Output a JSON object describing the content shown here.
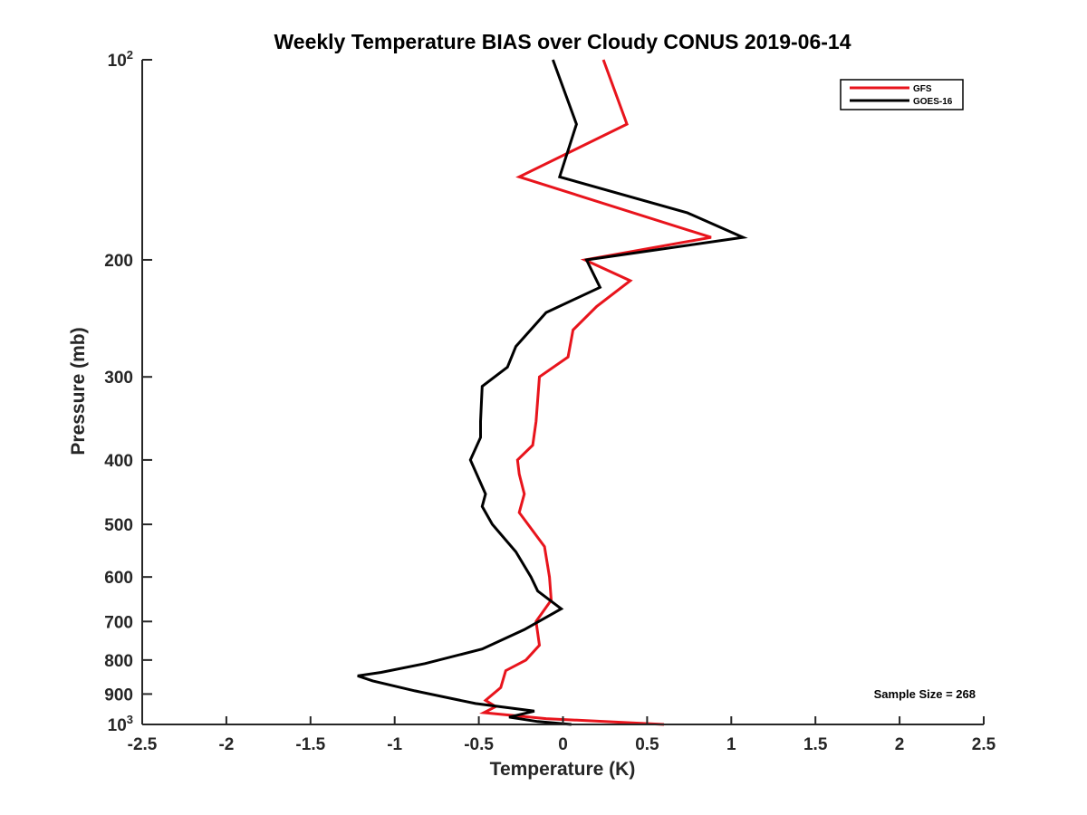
{
  "chart_data": {
    "type": "line",
    "title": "Weekly Temperature BIAS over Cloudy CONUS 2019-06-14",
    "xlabel": "Temperature (K)",
    "ylabel": "Pressure (mb)",
    "xlim": [
      -2.5,
      2.5
    ],
    "ylim": [
      100,
      1000
    ],
    "yscale": "log",
    "y_reversed": true,
    "x_ticks": [
      -2.5,
      -2,
      -1.5,
      -1,
      -0.5,
      0,
      0.5,
      1,
      1.5,
      2,
      2.5
    ],
    "x_tick_labels": [
      "-2.5",
      "-2",
      "-1.5",
      "-1",
      "-0.5",
      "0",
      "0.5",
      "1",
      "1.5",
      "2",
      "2.5"
    ],
    "y_ticks": [
      200,
      300,
      400,
      500,
      600,
      700,
      800,
      900
    ],
    "y_tick_labels": [
      "200",
      "300",
      "400",
      "500",
      "600",
      "700",
      "800",
      "900"
    ],
    "y_limit_labels": [
      {
        "value": 100,
        "base": "10",
        "exp": "2"
      },
      {
        "value": 1000,
        "base": "10",
        "exp": "3"
      }
    ],
    "legend": {
      "position": "top-right"
    },
    "annotation": "Sample Size = 268",
    "series": [
      {
        "name": "GFS",
        "color": "#e8141c",
        "points": [
          [
            0.24,
            100
          ],
          [
            0.38,
            125
          ],
          [
            -0.26,
            150
          ],
          [
            0.88,
            185
          ],
          [
            0.13,
            200
          ],
          [
            0.4,
            215
          ],
          [
            0.2,
            235
          ],
          [
            0.06,
            255
          ],
          [
            0.03,
            280
          ],
          [
            -0.14,
            300
          ],
          [
            -0.16,
            350
          ],
          [
            -0.18,
            380
          ],
          [
            -0.27,
            400
          ],
          [
            -0.26,
            420
          ],
          [
            -0.23,
            450
          ],
          [
            -0.26,
            480
          ],
          [
            -0.11,
            540
          ],
          [
            -0.08,
            600
          ],
          [
            -0.07,
            650
          ],
          [
            -0.16,
            700
          ],
          [
            -0.14,
            760
          ],
          [
            -0.22,
            800
          ],
          [
            -0.34,
            830
          ],
          [
            -0.37,
            880
          ],
          [
            -0.46,
            920
          ],
          [
            -0.4,
            940
          ],
          [
            -0.47,
            960
          ],
          [
            -0.1,
            980
          ],
          [
            0.6,
            1000
          ]
        ]
      },
      {
        "name": "GOES-16",
        "color": "#000000",
        "points": [
          [
            -0.06,
            100
          ],
          [
            0.08,
            125
          ],
          [
            -0.02,
            150
          ],
          [
            0.74,
            170
          ],
          [
            1.07,
            185
          ],
          [
            0.14,
            200
          ],
          [
            0.22,
            220
          ],
          [
            -0.1,
            240
          ],
          [
            -0.28,
            270
          ],
          [
            -0.33,
            290
          ],
          [
            -0.48,
            310
          ],
          [
            -0.49,
            350
          ],
          [
            -0.49,
            370
          ],
          [
            -0.55,
            400
          ],
          [
            -0.46,
            450
          ],
          [
            -0.48,
            470
          ],
          [
            -0.42,
            500
          ],
          [
            -0.28,
            550
          ],
          [
            -0.19,
            600
          ],
          [
            -0.15,
            630
          ],
          [
            -0.01,
            670
          ],
          [
            -0.23,
            720
          ],
          [
            -0.48,
            770
          ],
          [
            -0.82,
            810
          ],
          [
            -1.08,
            835
          ],
          [
            -1.22,
            845
          ],
          [
            -1.13,
            860
          ],
          [
            -0.88,
            890
          ],
          [
            -0.52,
            930
          ],
          [
            -0.17,
            955
          ],
          [
            -0.32,
            975
          ],
          [
            -0.15,
            990
          ],
          [
            0.05,
            1000
          ]
        ]
      }
    ]
  }
}
